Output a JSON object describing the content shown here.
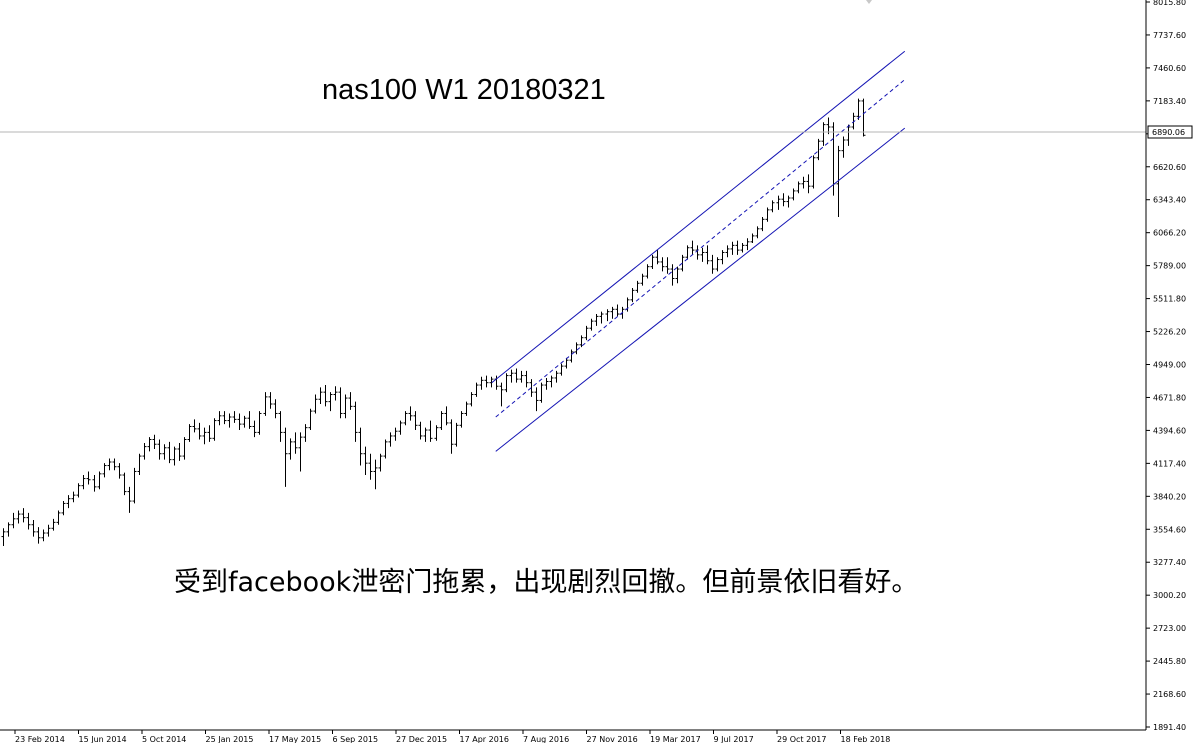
{
  "chart_data": {
    "type": "candlestick",
    "title": "nas100 W1 20180321",
    "annotation": "受到facebook泄密门拖累，出现剧烈回撤。但前景依旧看好。",
    "y_ticks": [
      "8015.80",
      "7737.60",
      "7460.60",
      "7183.40",
      "6890.06",
      "6620.60",
      "6343.40",
      "6066.20",
      "5789.00",
      "5511.80",
      "5226.20",
      "4949.00",
      "4671.80",
      "4394.60",
      "4117.40",
      "3840.20",
      "3554.60",
      "3277.40",
      "3000.20",
      "2723.00",
      "2445.80",
      "2168.60",
      "1891.40"
    ],
    "x_ticks": [
      "23 Feb 2014",
      "15 Jun 2014",
      "5 Oct 2014",
      "25 Jan 2015",
      "17 May 2015",
      "6 Sep 2015",
      "27 Dec 2015",
      "17 Apr 2016",
      "7 Aug 2016",
      "27 Nov 2016",
      "19 Mar 2017",
      "9 Jul 2017",
      "29 Oct 2017",
      "18 Feb 2018"
    ],
    "current_price": "6890.06",
    "ylim": [
      1891.4,
      8015.8
    ],
    "grid": false,
    "colors": {
      "candles": "#000000",
      "channel": "#1414b4",
      "price_line": "#b4b4b4"
    },
    "channel": {
      "upper": [
        {
          "date": "2016-04-17",
          "value": 4800
        },
        {
          "date": "2018-04-15",
          "value": 7600
        }
      ],
      "middle": [
        {
          "date": "2016-04-24",
          "value": 4510
        },
        {
          "date": "2018-04-15",
          "value": 7360
        }
      ],
      "lower": [
        {
          "date": "2016-04-24",
          "value": 4220
        },
        {
          "date": "2018-04-15",
          "value": 6950
        }
      ]
    },
    "series": [
      {
        "values": [
          [
            3500,
            3570,
            3420,
            3540
          ],
          [
            3540,
            3620,
            3500,
            3600
          ],
          [
            3600,
            3700,
            3570,
            3650
          ],
          [
            3650,
            3720,
            3610,
            3690
          ],
          [
            3690,
            3740,
            3620,
            3660
          ],
          [
            3660,
            3700,
            3560,
            3600
          ],
          [
            3600,
            3640,
            3500,
            3540
          ],
          [
            3540,
            3580,
            3440,
            3490
          ],
          [
            3490,
            3560,
            3460,
            3530
          ],
          [
            3530,
            3600,
            3500,
            3570
          ],
          [
            3570,
            3650,
            3550,
            3620
          ],
          [
            3620,
            3720,
            3600,
            3700
          ],
          [
            3700,
            3800,
            3680,
            3780
          ],
          [
            3780,
            3850,
            3740,
            3820
          ],
          [
            3820,
            3880,
            3790,
            3850
          ],
          [
            3850,
            3950,
            3830,
            3930
          ],
          [
            3930,
            4020,
            3900,
            3990
          ],
          [
            3990,
            4050,
            3940,
            3980
          ],
          [
            3980,
            4020,
            3880,
            3920
          ],
          [
            3920,
            4050,
            3900,
            4030
          ],
          [
            4030,
            4120,
            4000,
            4100
          ],
          [
            4100,
            4160,
            4060,
            4130
          ],
          [
            4130,
            4160,
            4060,
            4090
          ],
          [
            4090,
            4120,
            3990,
            4020
          ],
          [
            4020,
            4040,
            3850,
            3880
          ],
          [
            3880,
            3920,
            3700,
            3800
          ],
          [
            3800,
            4080,
            3780,
            4050
          ],
          [
            4050,
            4200,
            4020,
            4180
          ],
          [
            4180,
            4290,
            4150,
            4260
          ],
          [
            4260,
            4340,
            4220,
            4320
          ],
          [
            4320,
            4360,
            4240,
            4280
          ],
          [
            4280,
            4320,
            4150,
            4200
          ],
          [
            4200,
            4280,
            4150,
            4250
          ],
          [
            4250,
            4300,
            4120,
            4150
          ],
          [
            4150,
            4260,
            4100,
            4240
          ],
          [
            4240,
            4290,
            4140,
            4180
          ],
          [
            4180,
            4340,
            4150,
            4320
          ],
          [
            4320,
            4450,
            4300,
            4430
          ],
          [
            4430,
            4490,
            4380,
            4410
          ],
          [
            4410,
            4460,
            4320,
            4350
          ],
          [
            4350,
            4420,
            4280,
            4380
          ],
          [
            4380,
            4440,
            4300,
            4330
          ],
          [
            4330,
            4500,
            4310,
            4480
          ],
          [
            4480,
            4560,
            4440,
            4520
          ],
          [
            4520,
            4560,
            4450,
            4480
          ],
          [
            4480,
            4540,
            4420,
            4510
          ],
          [
            4510,
            4560,
            4460,
            4490
          ],
          [
            4490,
            4540,
            4400,
            4450
          ],
          [
            4450,
            4520,
            4420,
            4500
          ],
          [
            4500,
            4560,
            4410,
            4430
          ],
          [
            4430,
            4480,
            4340,
            4380
          ],
          [
            4380,
            4560,
            4360,
            4540
          ],
          [
            4540,
            4720,
            4520,
            4680
          ],
          [
            4680,
            4720,
            4580,
            4620
          ],
          [
            4620,
            4660,
            4500,
            4540
          ],
          [
            4540,
            4560,
            4300,
            4380
          ],
          [
            4380,
            4420,
            3920,
            4200
          ],
          [
            4200,
            4330,
            4150,
            4300
          ],
          [
            4300,
            4380,
            4200,
            4250
          ],
          [
            4250,
            4380,
            4050,
            4340
          ],
          [
            4340,
            4450,
            4300,
            4420
          ],
          [
            4420,
            4580,
            4400,
            4560
          ],
          [
            4560,
            4700,
            4540,
            4660
          ],
          [
            4660,
            4760,
            4620,
            4720
          ],
          [
            4720,
            4780,
            4600,
            4640
          ],
          [
            4640,
            4720,
            4560,
            4700
          ],
          [
            4700,
            4770,
            4650,
            4720
          ],
          [
            4720,
            4760,
            4500,
            4540
          ],
          [
            4540,
            4700,
            4500,
            4670
          ],
          [
            4670,
            4720,
            4570,
            4600
          ],
          [
            4600,
            4640,
            4300,
            4380
          ],
          [
            4380,
            4420,
            4100,
            4200
          ],
          [
            4200,
            4260,
            4020,
            4120
          ],
          [
            4120,
            4200,
            3980,
            4050
          ],
          [
            4050,
            4150,
            3900,
            4080
          ],
          [
            4080,
            4200,
            4050,
            4180
          ],
          [
            4180,
            4320,
            4160,
            4300
          ],
          [
            4300,
            4380,
            4260,
            4350
          ],
          [
            4350,
            4420,
            4310,
            4390
          ],
          [
            4390,
            4480,
            4360,
            4460
          ],
          [
            4460,
            4560,
            4440,
            4540
          ],
          [
            4540,
            4600,
            4480,
            4520
          ],
          [
            4520,
            4560,
            4400,
            4440
          ],
          [
            4440,
            4470,
            4320,
            4350
          ],
          [
            4350,
            4420,
            4300,
            4400
          ],
          [
            4400,
            4480,
            4300,
            4330
          ],
          [
            4330,
            4440,
            4310,
            4420
          ],
          [
            4420,
            4560,
            4400,
            4540
          ],
          [
            4540,
            4600,
            4440,
            4460
          ],
          [
            4460,
            4490,
            4200,
            4280
          ],
          [
            4280,
            4460,
            4260,
            4440
          ],
          [
            4440,
            4560,
            4420,
            4540
          ],
          [
            4540,
            4640,
            4520,
            4620
          ],
          [
            4620,
            4720,
            4600,
            4700
          ],
          [
            4700,
            4800,
            4680,
            4780
          ],
          [
            4780,
            4850,
            4740,
            4820
          ],
          [
            4820,
            4860,
            4760,
            4800
          ],
          [
            4800,
            4850,
            4760,
            4830
          ],
          [
            4830,
            4860,
            4740,
            4770
          ],
          [
            4770,
            4800,
            4600,
            4740
          ],
          [
            4740,
            4880,
            4720,
            4860
          ],
          [
            4860,
            4910,
            4800,
            4880
          ],
          [
            4880,
            4920,
            4800,
            4830
          ],
          [
            4830,
            4900,
            4800,
            4860
          ],
          [
            4860,
            4900,
            4760,
            4800
          ],
          [
            4800,
            4830,
            4680,
            4720
          ],
          [
            4720,
            4760,
            4560,
            4650
          ],
          [
            4650,
            4800,
            4630,
            4780
          ],
          [
            4780,
            4840,
            4740,
            4810
          ],
          [
            4810,
            4860,
            4760,
            4840
          ],
          [
            4840,
            4900,
            4800,
            4880
          ],
          [
            4880,
            4960,
            4860,
            4940
          ],
          [
            4940,
            5010,
            4920,
            4990
          ],
          [
            4990,
            5080,
            4970,
            5060
          ],
          [
            5060,
            5140,
            5040,
            5120
          ],
          [
            5120,
            5200,
            5100,
            5180
          ],
          [
            5180,
            5280,
            5160,
            5260
          ],
          [
            5260,
            5340,
            5240,
            5320
          ],
          [
            5320,
            5380,
            5280,
            5360
          ],
          [
            5360,
            5400,
            5300,
            5380
          ],
          [
            5380,
            5420,
            5320,
            5400
          ],
          [
            5400,
            5440,
            5340,
            5420
          ],
          [
            5420,
            5460,
            5360,
            5380
          ],
          [
            5380,
            5440,
            5340,
            5420
          ],
          [
            5420,
            5520,
            5400,
            5500
          ],
          [
            5500,
            5600,
            5480,
            5580
          ],
          [
            5580,
            5660,
            5560,
            5640
          ],
          [
            5640,
            5720,
            5620,
            5700
          ],
          [
            5700,
            5800,
            5680,
            5780
          ],
          [
            5780,
            5880,
            5760,
            5860
          ],
          [
            5860,
            5920,
            5800,
            5820
          ],
          [
            5820,
            5860,
            5740,
            5780
          ],
          [
            5780,
            5860,
            5720,
            5760
          ],
          [
            5760,
            5800,
            5620,
            5680
          ],
          [
            5680,
            5780,
            5640,
            5760
          ],
          [
            5760,
            5880,
            5740,
            5860
          ],
          [
            5860,
            5960,
            5840,
            5940
          ],
          [
            5940,
            6000,
            5880,
            5920
          ],
          [
            5920,
            5960,
            5840,
            5880
          ],
          [
            5880,
            5940,
            5820,
            5900
          ],
          [
            5900,
            5960,
            5800,
            5830
          ],
          [
            5830,
            5880,
            5720,
            5760
          ],
          [
            5760,
            5860,
            5740,
            5840
          ],
          [
            5840,
            5920,
            5800,
            5900
          ],
          [
            5900,
            5960,
            5860,
            5930
          ],
          [
            5930,
            5990,
            5880,
            5960
          ],
          [
            5960,
            6000,
            5880,
            5920
          ],
          [
            5920,
            5980,
            5900,
            5960
          ],
          [
            5960,
            6020,
            5920,
            5990
          ],
          [
            5990,
            6060,
            5980,
            6040
          ],
          [
            6040,
            6120,
            6020,
            6100
          ],
          [
            6100,
            6200,
            6080,
            6180
          ],
          [
            6180,
            6280,
            6160,
            6260
          ],
          [
            6260,
            6340,
            6240,
            6320
          ],
          [
            6320,
            6380,
            6260,
            6350
          ],
          [
            6350,
            6400,
            6290,
            6330
          ],
          [
            6330,
            6380,
            6280,
            6360
          ],
          [
            6360,
            6440,
            6340,
            6420
          ],
          [
            6420,
            6500,
            6400,
            6480
          ],
          [
            6480,
            6540,
            6440,
            6500
          ],
          [
            6500,
            6560,
            6400,
            6460
          ],
          [
            6460,
            6720,
            6440,
            6700
          ],
          [
            6700,
            6860,
            6680,
            6840
          ],
          [
            6840,
            7000,
            6800,
            6980
          ],
          [
            6980,
            7040,
            6900,
            6960
          ],
          [
            6960,
            7000,
            6380,
            6480
          ],
          [
            6480,
            6800,
            6200,
            6760
          ],
          [
            6760,
            6880,
            6700,
            6850
          ],
          [
            6850,
            6980,
            6800,
            6960
          ],
          [
            6960,
            7080,
            6940,
            7050
          ],
          [
            7050,
            7200,
            7020,
            7180
          ],
          [
            7180,
            7200,
            6880,
            6890
          ]
        ]
      }
    ]
  }
}
